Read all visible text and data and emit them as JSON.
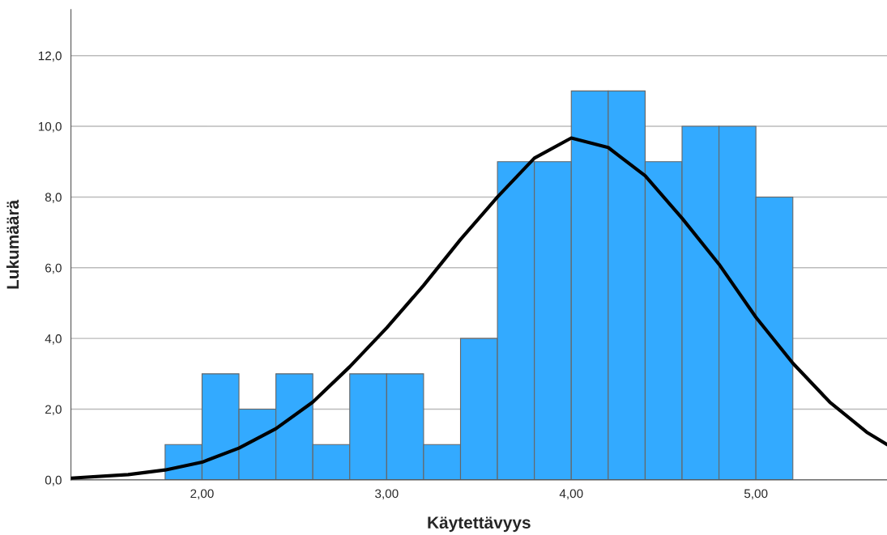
{
  "chart_data": {
    "type": "histogram",
    "xlabel": "Käytettävyys",
    "ylabel": "Lukumäärä",
    "bins": [
      1.8,
      2.0,
      2.2,
      2.4,
      2.6,
      2.8,
      3.0,
      3.2,
      3.4,
      3.6,
      3.8,
      4.0,
      4.2,
      4.4,
      4.6,
      4.8,
      5.0,
      5.2
    ],
    "values": [
      1,
      3,
      2,
      3,
      1,
      3,
      3,
      1,
      4,
      9,
      9,
      11,
      11,
      9,
      10,
      10,
      8
    ],
    "color": "#33aaff",
    "series": [
      {
        "type": "line",
        "color": "#000000",
        "x": [
          1.29,
          1.6,
          1.8,
          2.0,
          2.2,
          2.4,
          2.6,
          2.8,
          3.0,
          3.2,
          3.4,
          3.6,
          3.8,
          4.0,
          4.2,
          4.4,
          4.6,
          4.8,
          5.0,
          5.2,
          5.4,
          5.6,
          5.71
        ],
        "values": [
          0.05,
          0.15,
          0.28,
          0.5,
          0.9,
          1.45,
          2.2,
          3.2,
          4.3,
          5.5,
          6.8,
          8.0,
          9.1,
          9.67,
          9.4,
          8.6,
          7.4,
          6.1,
          4.6,
          3.3,
          2.2,
          1.35,
          1.0
        ]
      }
    ],
    "xlim": [
      1.29,
      5.71
    ],
    "ylim": [
      0,
      13.3
    ],
    "xticks": [
      {
        "value": 2,
        "label": "2,00"
      },
      {
        "value": 3,
        "label": "3,00"
      },
      {
        "value": 4,
        "label": "4,00"
      },
      {
        "value": 5,
        "label": "5,00"
      }
    ],
    "yticks": [
      {
        "value": 0,
        "label": "0,0"
      },
      {
        "value": 2,
        "label": "2,0"
      },
      {
        "value": 4,
        "label": "4,0"
      },
      {
        "value": 6,
        "label": "6,0"
      },
      {
        "value": 8,
        "label": "8,0"
      },
      {
        "value": 10,
        "label": "10,0"
      },
      {
        "value": 12,
        "label": "12,0"
      }
    ],
    "grid": "y"
  }
}
